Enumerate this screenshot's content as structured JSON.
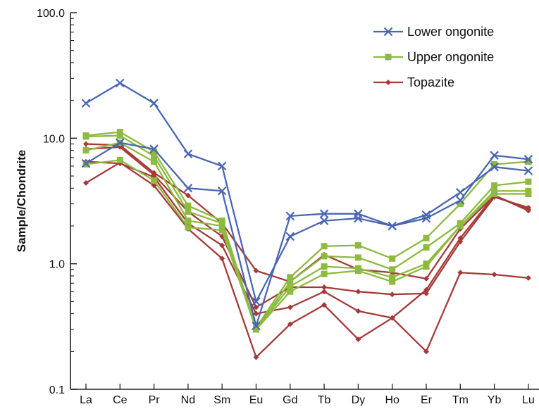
{
  "chart_data": {
    "type": "line",
    "ylabel": "Sample/Chondrite",
    "xlabel": "",
    "y_scale": "log",
    "ylim": [
      0.1,
      100
    ],
    "yticks": [
      "0.1",
      "1.0",
      "10.0",
      "100.0"
    ],
    "categories": [
      "La",
      "Ce",
      "Pr",
      "Nd",
      "Sm",
      "Eu",
      "Gd",
      "Tb",
      "Dy",
      "Ho",
      "Er",
      "Tm",
      "Yb",
      "Lu"
    ],
    "legend_position": "top-right",
    "grid": false,
    "groups": [
      {
        "name": "Lower ongonite",
        "color": "#4a66b3",
        "marker": "x",
        "lines": [
          [
            19,
            27.5,
            19,
            7.5,
            6,
            0.5,
            1.65,
            2.2,
            2.3,
            2,
            2.3,
            3.2,
            7.3,
            6.8
          ],
          [
            6.3,
            9.2,
            8.2,
            4,
            3.8,
            0.32,
            2.4,
            2.5,
            2.5,
            2,
            2.45,
            3.7,
            5.9,
            5.5
          ]
        ]
      },
      {
        "name": "Upper ongonite",
        "color": "#8dba3f",
        "marker": "square",
        "lines": [
          [
            10.5,
            11.2,
            7.8,
            2.9,
            2.2,
            0.31,
            0.78,
            1.38,
            1.4,
            1.1,
            1.6,
            3,
            6.2,
            6.5
          ],
          [
            10.3,
            10.5,
            7.2,
            2.6,
            2.1,
            0.3,
            0.72,
            1.15,
            1.12,
            0.9,
            1.35,
            2.1,
            4.2,
            4.5
          ],
          [
            8,
            9.2,
            6.5,
            2.2,
            2.0,
            0.3,
            0.66,
            0.95,
            0.92,
            0.78,
            1.0,
            2.0,
            3.8,
            3.8
          ],
          [
            6.2,
            6.7,
            4.6,
            1.95,
            1.85,
            0.3,
            0.6,
            0.83,
            0.88,
            0.72,
            0.95,
            2.0,
            3.6,
            3.6
          ]
        ]
      },
      {
        "name": "Topazite",
        "color": "#a63a3a",
        "marker": "diamond",
        "lines": [
          [
            9,
            8.8,
            5.3,
            3.5,
            2.1,
            0.88,
            0.72,
            1.18,
            0.9,
            0.85,
            0.76,
            1.9,
            3.5,
            2.7
          ],
          [
            8.2,
            8.5,
            5.1,
            2.6,
            1.65,
            0.45,
            0.65,
            0.65,
            0.6,
            0.57,
            0.58,
            1.5,
            3.4,
            2.8
          ],
          [
            6.5,
            6.3,
            4.9,
            2.1,
            1.4,
            0.4,
            0.45,
            0.6,
            0.42,
            0.37,
            0.62,
            1.6,
            3.5,
            2.65
          ],
          [
            4.4,
            6.4,
            4.2,
            1.9,
            1.1,
            0.18,
            0.33,
            0.47,
            0.25,
            0.37,
            0.2,
            0.85,
            0.82,
            0.77
          ]
        ]
      }
    ]
  }
}
